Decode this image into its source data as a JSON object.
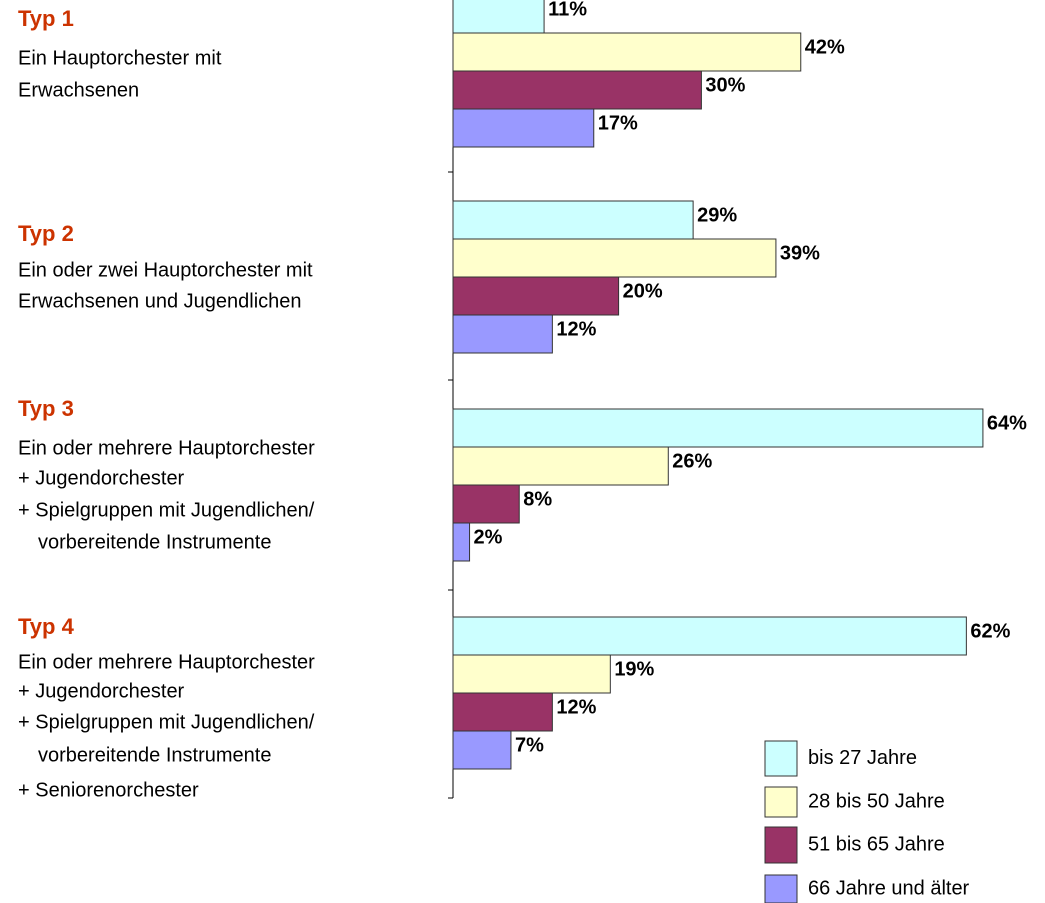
{
  "chart_data": {
    "type": "bar",
    "orientation": "horizontal",
    "categories": [
      "Typ 1",
      "Typ 2",
      "Typ 3",
      "Typ 4"
    ],
    "descriptions": [
      [
        "Ein Hauptorchester mit",
        "Erwachsenen"
      ],
      [
        "Ein oder zwei Hauptorchester mit",
        "Erwachsenen und Jugendlichen"
      ],
      [
        "Ein oder mehrere Hauptorchester",
        "+ Jugendorchester",
        "+ Spielgruppen mit Jugendlichen/",
        "vorbereitende Instrumente"
      ],
      [
        "Ein oder mehrere Hauptorchester",
        "+ Jugendorchester",
        "+ Spielgruppen mit Jugendlichen/",
        "vorbereitende Instrumente",
        "+ Seniorenorchester"
      ]
    ],
    "series": [
      {
        "name": "bis 27 Jahre",
        "color": "#ccffff",
        "values": [
          11,
          29,
          64,
          62
        ],
        "value_labels": [
          "11%",
          "29%",
          "64%",
          "62%"
        ]
      },
      {
        "name": "28 bis 50 Jahre",
        "color": "#ffffcc",
        "values": [
          42,
          39,
          26,
          19
        ],
        "value_labels": [
          "42%",
          "39%",
          "26%",
          "19%"
        ]
      },
      {
        "name": "51 bis 65 Jahre",
        "color": "#993366",
        "values": [
          30,
          20,
          8,
          12
        ],
        "value_labels": [
          "30%",
          "20%",
          "8%",
          "12%"
        ]
      },
      {
        "name": "66 Jahre und älter",
        "color": "#9999ff",
        "values": [
          17,
          12,
          2,
          7
        ],
        "value_labels": [
          "17%",
          "12%",
          "2%",
          "7%"
        ]
      }
    ],
    "legend": "bottom-right"
  }
}
